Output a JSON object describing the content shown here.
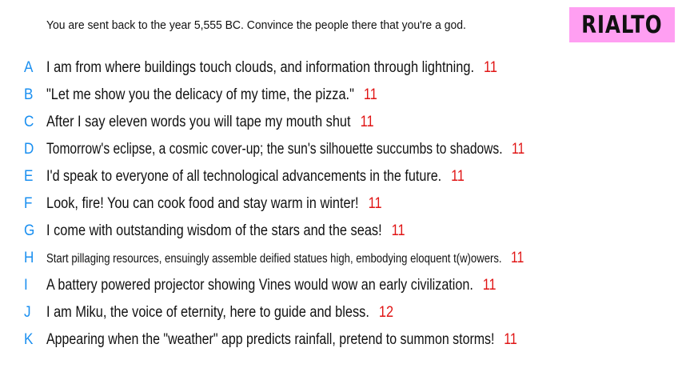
{
  "header": {
    "prompt": "You are sent back to the year 5,555 BC. Convince the people there that you're a god.",
    "logo": "RIALTO"
  },
  "answers": [
    {
      "letter": "A",
      "text": "I am from where buildings touch clouds, and information through lightning.",
      "score": "11"
    },
    {
      "letter": "B",
      "text": "\"Let me show you the delicacy of my time, the pizza.\"",
      "score": "11"
    },
    {
      "letter": "C",
      "text": "After I say eleven words you will tape my mouth shut",
      "score": "11"
    },
    {
      "letter": "D",
      "text": "Tomorrow's eclipse, a cosmic cover-up; the sun's silhouette succumbs to shadows.",
      "score": "11"
    },
    {
      "letter": "E",
      "text": "I'd speak to everyone of all technological advancements in the future.",
      "score": "11"
    },
    {
      "letter": "F",
      "text": "Look, fire! You can cook food and stay warm in winter!",
      "score": "11"
    },
    {
      "letter": "G",
      "text": "I come with outstanding wisdom of the stars and the seas!",
      "score": "11"
    },
    {
      "letter": "H",
      "text": "Start pillaging resources, ensuingly assemble deified statues high, embodying eloquent t(w)owers.",
      "score": "11"
    },
    {
      "letter": "I",
      "text": "A battery powered projector showing Vines would wow an early civilization.",
      "score": "11"
    },
    {
      "letter": "J",
      "text": "I am Miku, the voice of eternity, here to guide and bless.",
      "score": "12"
    },
    {
      "letter": "K",
      "text": "Appearing when the \"weather\" app predicts rainfall, pretend to summon storms!",
      "score": "11"
    }
  ]
}
